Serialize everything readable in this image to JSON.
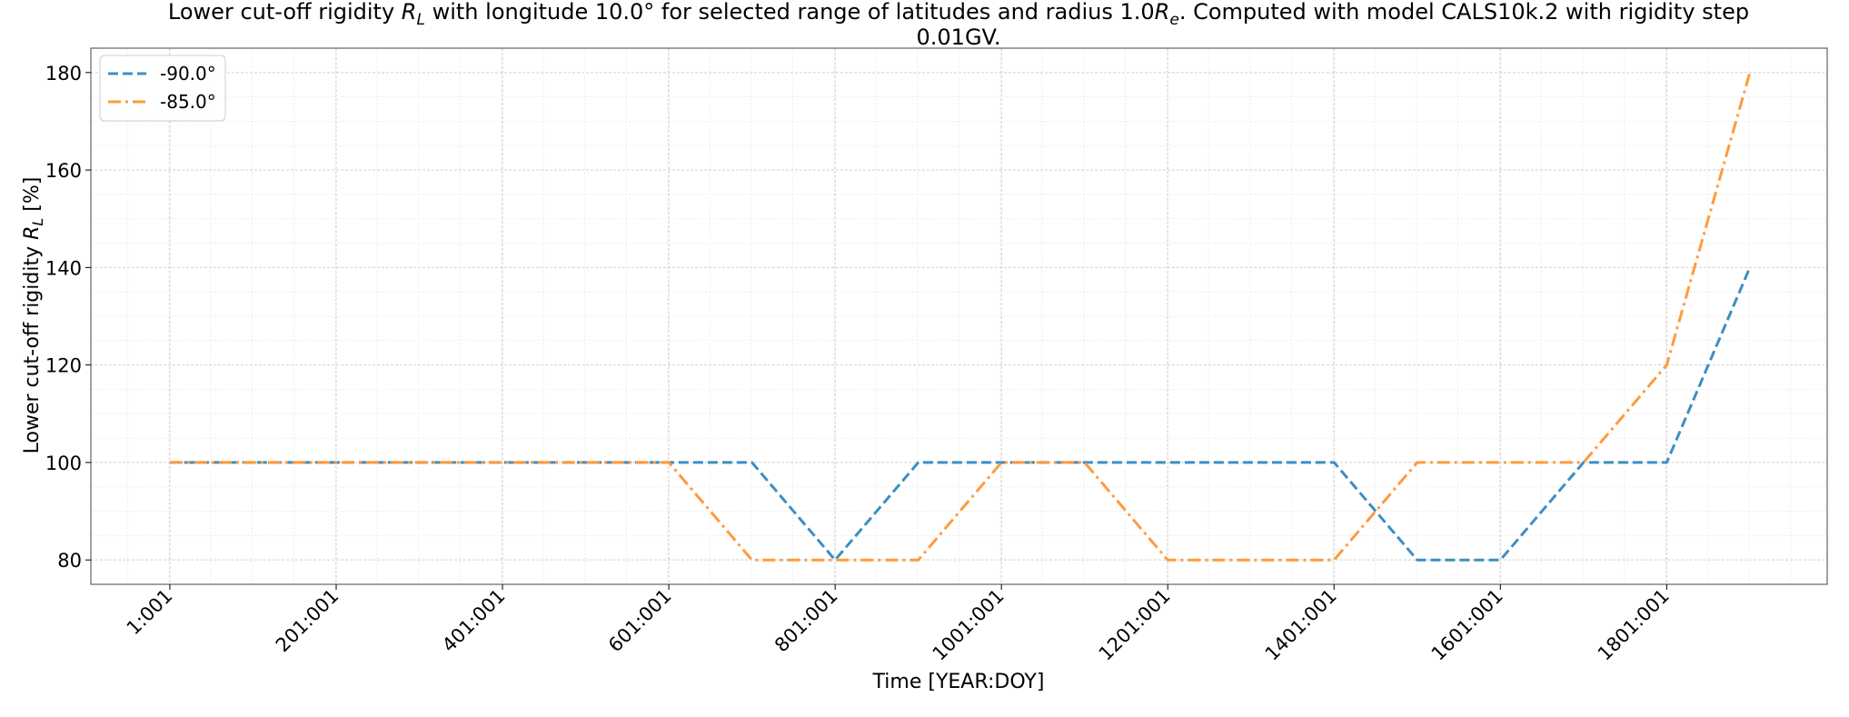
{
  "chart_data": {
    "type": "line",
    "title": {
      "line1_pre": "Lower cut-off rigidity ",
      "line1_var": "R",
      "line1_sub": "L",
      "line1_mid": " with longitude 10.0° for selected range of latitudes and radius 1.0",
      "line1_var2": "R",
      "line1_sub2": "e",
      "line1_post": ". Computed with model CALS10k.2 with rigidity step",
      "line2": "0.01GV."
    },
    "xlabel": "Time [YEAR:DOY]",
    "ylabel": {
      "pre": "Lower cut-off rigidity ",
      "var": "R",
      "sub": "L",
      "post": " [%]"
    },
    "xlim": [
      -94,
      1994
    ],
    "ylim": [
      75,
      185
    ],
    "xticks": [
      {
        "value": 1,
        "label": "1:001"
      },
      {
        "value": 201,
        "label": "201:001"
      },
      {
        "value": 401,
        "label": "401:001"
      },
      {
        "value": 601,
        "label": "601:001"
      },
      {
        "value": 801,
        "label": "801:001"
      },
      {
        "value": 1001,
        "label": "1001:001"
      },
      {
        "value": 1201,
        "label": "1201:001"
      },
      {
        "value": 1401,
        "label": "1401:001"
      },
      {
        "value": 1601,
        "label": "1601:001"
      },
      {
        "value": 1801,
        "label": "1801:001"
      }
    ],
    "yticks": [
      {
        "value": 80,
        "label": "80"
      },
      {
        "value": 100,
        "label": "100"
      },
      {
        "value": 120,
        "label": "120"
      },
      {
        "value": 140,
        "label": "140"
      },
      {
        "value": 160,
        "label": "160"
      },
      {
        "value": 180,
        "label": "180"
      }
    ],
    "grid": true,
    "legend_position": "upper-left",
    "x": [
      1,
      101,
      201,
      301,
      401,
      501,
      601,
      701,
      801,
      901,
      1001,
      1101,
      1201,
      1301,
      1401,
      1501,
      1601,
      1701,
      1801,
      1901
    ],
    "series": [
      {
        "name": "-90.0°",
        "color": "#3d8ec4",
        "style": "dashed",
        "values": [
          100,
          100,
          100,
          100,
          100,
          100,
          100,
          100,
          80,
          100,
          100,
          100,
          100,
          100,
          100,
          80,
          80,
          100,
          100,
          140
        ]
      },
      {
        "name": "-85.0°",
        "color": "#ff9a3c",
        "style": "dashdot",
        "values": [
          100,
          100,
          100,
          100,
          100,
          100,
          100,
          80,
          80,
          80,
          100,
          100,
          80,
          80,
          80,
          100,
          100,
          100,
          120,
          180
        ]
      }
    ]
  }
}
